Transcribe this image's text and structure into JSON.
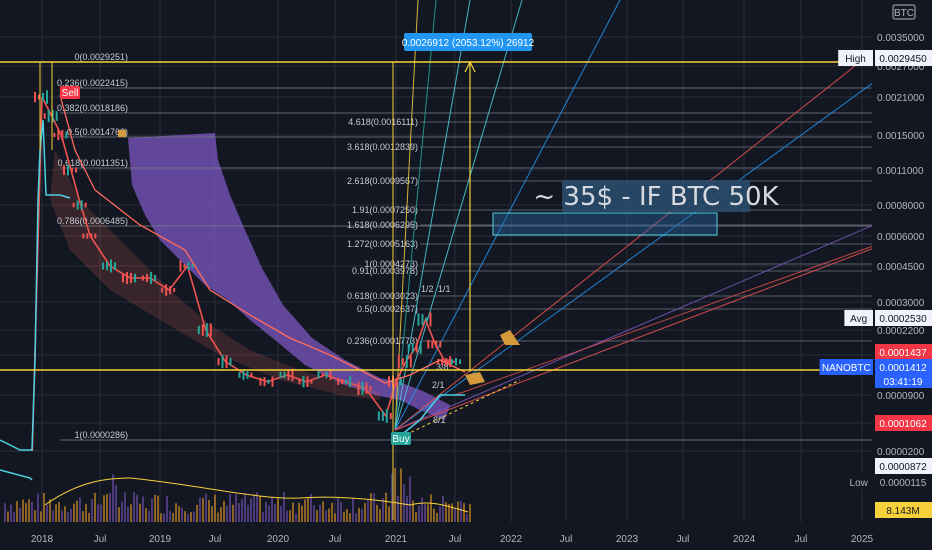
{
  "chart_data": {
    "type": "line",
    "symbol_tag": "BTC",
    "price_axis_ticks": [
      "0.0035000",
      "0.0027000",
      "0.0021000",
      "0.0015000",
      "0.0011000",
      "0.0008000",
      "0.0006000",
      "0.0004500",
      "0.0003000",
      "0.0002200",
      "0.0001500",
      "0.0000900",
      "0.0000500",
      "0.0000200"
    ],
    "time_axis_ticks": [
      "2018",
      "Jul",
      "2019",
      "Jul",
      "2020",
      "Jul",
      "2021",
      "Jul",
      "2022",
      "Jul",
      "2023",
      "Jul",
      "2024",
      "Jul",
      "2025"
    ],
    "fib_levels": [
      {
        "label": "0(0.0029251)"
      },
      {
        "label": "0.236(0.0022415)"
      },
      {
        "label": "0.382(0.0018186)"
      },
      {
        "label": "0.5(0.0014768)"
      },
      {
        "label": "0.618(0.0011351)"
      },
      {
        "label": "0.786(0.0006485)"
      },
      {
        "label": "1(0.0000286)"
      }
    ],
    "fib_extensions": [
      {
        "label": "4.618(0.0016111)"
      },
      {
        "label": "3.618(0.0012839)"
      },
      {
        "label": "2.618(0.0009567)"
      },
      {
        "label": "1.91(0.0007250)"
      },
      {
        "label": "1.618(0.0006295)"
      },
      {
        "label": "1.272(0.0005163)"
      },
      {
        "label": "1(0.0004273)"
      },
      {
        "label": "0.91(0.0003978)"
      },
      {
        "label": "0.618(0.0003023)"
      },
      {
        "label": "0.5(0.0002637)"
      },
      {
        "label": "0.236(0.0001773)"
      }
    ],
    "fan_labels": [
      "1/1",
      "1/2",
      "3/8",
      "2/1",
      "8/1"
    ],
    "measure_label": "0.0026912 (2053.12%) 26912",
    "annotation": "~ 35$ - IF BTC 50K",
    "signals": {
      "sell": "Sell",
      "buy": "Buy"
    },
    "price_tags": {
      "high": {
        "label": "High",
        "value": "0.0029450"
      },
      "avg": {
        "label": "Avg",
        "value": "0.0002530"
      },
      "a": {
        "value": "0.0001437"
      },
      "nano": {
        "label": "NANOBTC",
        "value": "0.0001412",
        "countdown": "03:41:19"
      },
      "b": {
        "value": "0.0001062"
      },
      "c": {
        "value": "0.0000872"
      },
      "low": {
        "label": "Low",
        "value": "0.0000115"
      },
      "volume": {
        "value": "8.143M"
      }
    },
    "price_series": {
      "x": [
        "2017-12",
        "2018-01",
        "2018-02",
        "2018-03",
        "2018-04",
        "2018-05",
        "2018-06",
        "2018-08",
        "2018-10",
        "2018-12",
        "2019-02",
        "2019-04",
        "2019-06",
        "2019-08",
        "2019-10",
        "2019-12",
        "2020-02",
        "2020-04",
        "2020-06",
        "2020-08",
        "2020-10",
        "2020-12",
        "2021-01",
        "2021-02",
        "2021-03",
        "2021-04",
        "2021-05",
        "2021-06",
        "2021-07"
      ],
      "y": [
        2e-05,
        0.0021,
        0.0018,
        0.0015,
        0.0011,
        0.0008,
        0.0006,
        0.00045,
        0.0004,
        0.0004,
        0.00035,
        0.00045,
        0.00022,
        0.00014,
        0.00012,
        0.00011,
        0.00012,
        0.00011,
        0.00012,
        0.00011,
        0.0001,
        6e-05,
        0.00011,
        0.00014,
        0.00017,
        0.00025,
        0.00018,
        0.00014,
        0.00014
      ]
    },
    "colors": {
      "bg": "#131722",
      "grid": "#2a2e39",
      "fib": "#787b86",
      "yellow": "#f7d13b",
      "candles_up": "#26a69a",
      "candles_down": "#ef5350",
      "cloud": "#7e57c2",
      "tag_red": "#f23645",
      "tag_blue": "#2962ff",
      "tag_gray": "#434651",
      "cyan": "#4dd0e1",
      "note_box": "#2a4b6b",
      "measure_box": "#2196f3"
    }
  }
}
